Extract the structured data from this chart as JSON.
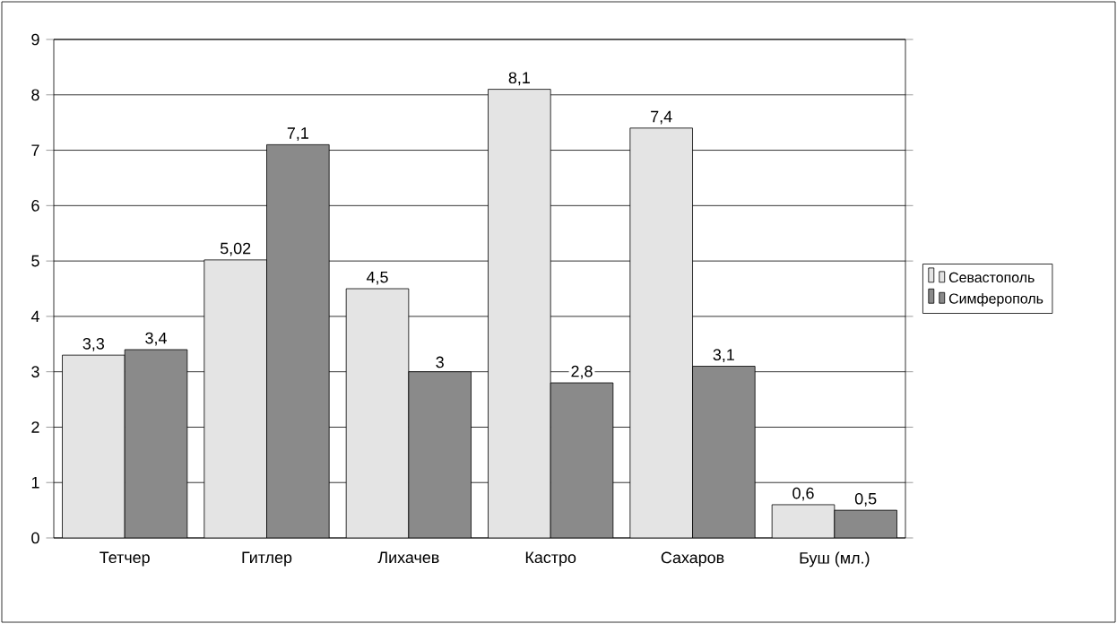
{
  "chart_data": {
    "type": "bar",
    "categories": [
      "Тетчер",
      "Гитлер",
      "Лихачев",
      "Кастро",
      "Сахаров",
      "Буш (мл.)"
    ],
    "series": [
      {
        "name": "Севастополь",
        "color": "#e4e4e4",
        "values": [
          3.3,
          5.02,
          4.5,
          8.1,
          7.4,
          0.6
        ],
        "value_labels": [
          "3,3",
          "5,02",
          "4,5",
          "8,1",
          "7,4",
          "0,6"
        ]
      },
      {
        "name": "Симферополь",
        "color": "#8a8a8a",
        "values": [
          3.4,
          7.1,
          3,
          2.8,
          3.1,
          0.5
        ],
        "value_labels": [
          "3,4",
          "7,1",
          "3",
          "2,8",
          "3,1",
          "0,5"
        ]
      }
    ],
    "ylim": [
      0,
      9
    ],
    "yticks": [
      0,
      1,
      2,
      3,
      4,
      5,
      6,
      7,
      8,
      9
    ],
    "grid": "y",
    "legend": "right"
  }
}
